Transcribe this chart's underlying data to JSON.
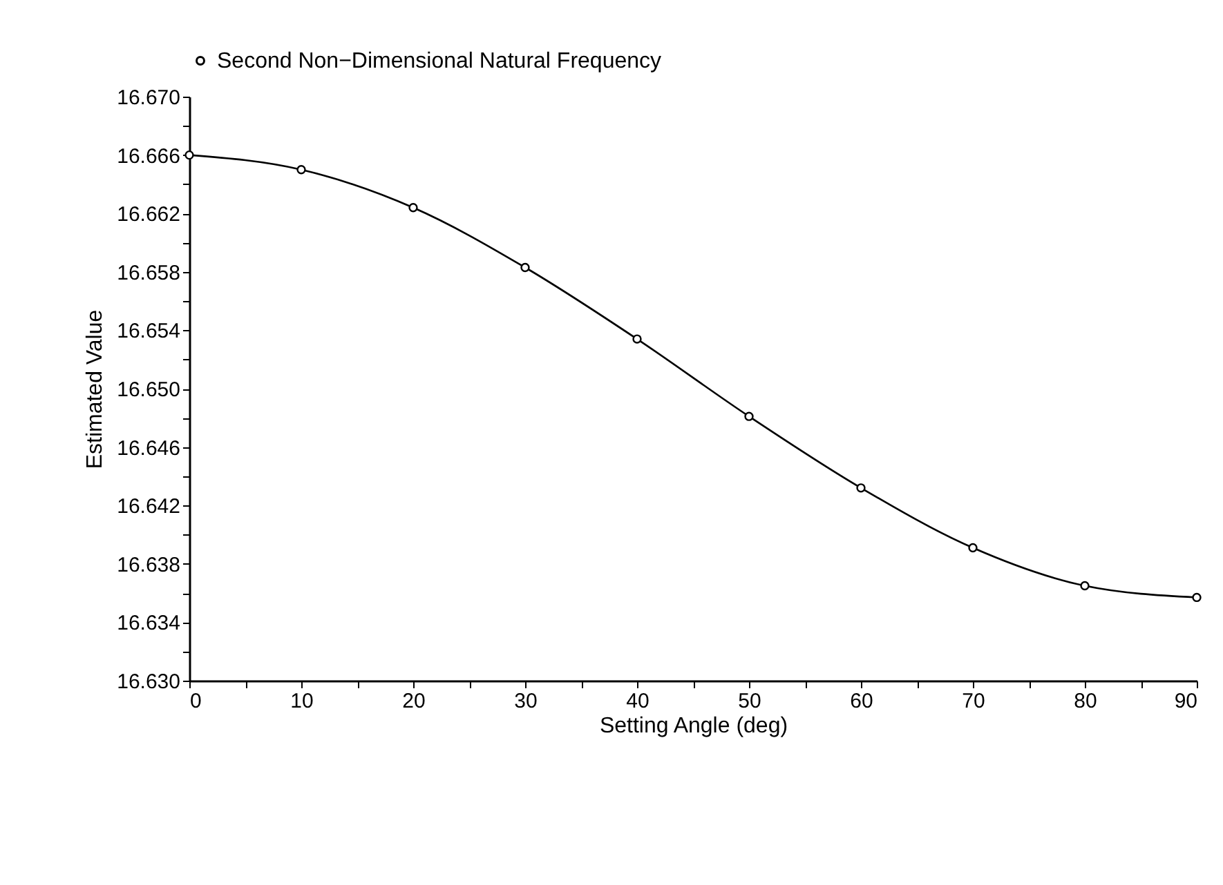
{
  "chart_data": {
    "type": "line",
    "xlabel": "Setting Angle (deg)",
    "ylabel": "Estimated Value",
    "x": [
      0,
      10,
      20,
      30,
      40,
      50,
      60,
      70,
      80,
      90
    ],
    "series": [
      {
        "name": "Second Non−Dimensional Natural Frequency",
        "color": "#000000",
        "values": [
          16.666,
          16.665,
          16.6624,
          16.6583,
          16.6534,
          16.6481,
          16.6432,
          16.6391,
          16.6365,
          16.6357
        ]
      }
    ],
    "xlim": [
      0,
      90
    ],
    "xticks": [
      0,
      {
        "value": 5,
        "label": null
      },
      10,
      {
        "value": 15,
        "label": null
      },
      20,
      {
        "value": 25,
        "label": null
      },
      30,
      {
        "value": 35,
        "label": null
      },
      40,
      {
        "value": 45,
        "label": null
      },
      50,
      {
        "value": 55,
        "label": null
      },
      60,
      {
        "value": 65,
        "label": null
      },
      70,
      {
        "value": 75,
        "label": null
      },
      80,
      {
        "value": 85,
        "label": null
      },
      90
    ],
    "ylim": [
      16.63,
      16.67
    ],
    "yticks": [
      {
        "value": 16.63,
        "label": "16.630"
      },
      {
        "value": 16.632,
        "label": null
      },
      16.634,
      {
        "value": 16.636,
        "label": null
      },
      16.638,
      {
        "value": 16.64,
        "label": null
      },
      16.642,
      {
        "value": 16.644,
        "label": null
      },
      16.646,
      {
        "value": 16.648,
        "label": null
      },
      {
        "value": 16.65,
        "label": "16.650"
      },
      {
        "value": 16.652,
        "label": null
      },
      16.654,
      {
        "value": 16.656,
        "label": null
      },
      16.658,
      {
        "value": 16.66,
        "label": null
      },
      16.662,
      {
        "value": 16.664,
        "label": null
      },
      16.666,
      {
        "value": 16.668,
        "label": null
      },
      {
        "value": 16.67,
        "label": "16.670"
      }
    ],
    "marker": "circle",
    "line_style": "solid",
    "legend": "top",
    "grid": false
  }
}
